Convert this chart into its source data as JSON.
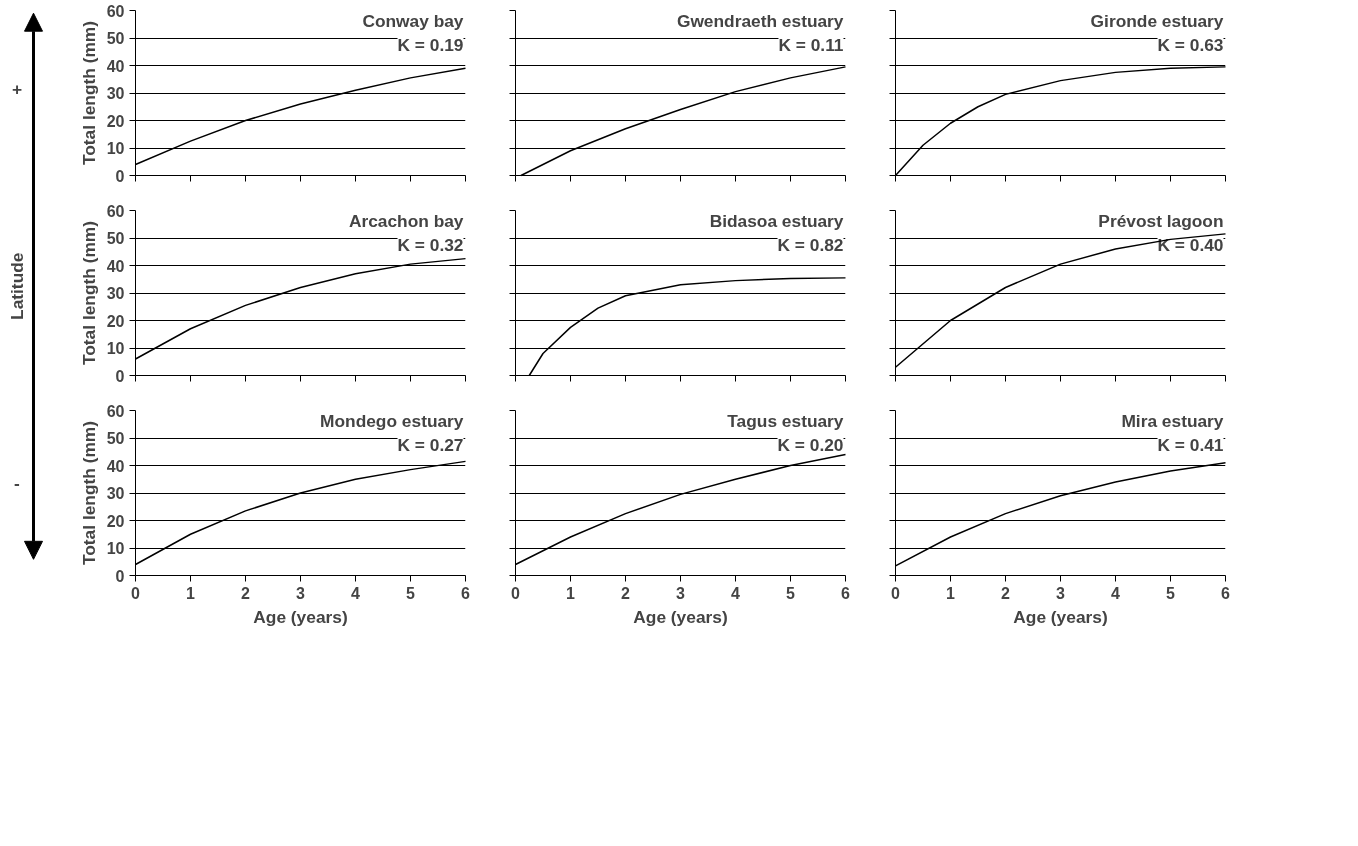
{
  "chart_data": [
    {
      "type": "line",
      "title": "Conway bay",
      "annotations": [
        "K = 0.19",
        "Latitude",
        "+",
        "-"
      ],
      "ylabel": "Total length (mm)",
      "x": [
        0,
        1,
        2,
        3,
        4,
        5,
        6
      ],
      "series": [
        {
          "color": "#000000",
          "values": [
            4,
            12.5,
            20,
            26,
            31,
            35.5,
            39
          ]
        }
      ],
      "xlim": [
        0,
        6
      ],
      "xticks": [
        0,
        1,
        2,
        3,
        4,
        5,
        6
      ],
      "ylim": [
        0,
        60
      ],
      "yticks": [
        0,
        10,
        20,
        30,
        40,
        50,
        60
      ],
      "grid": "y",
      "tick_labels": "y"
    },
    {
      "type": "line",
      "title": "Gwendraeth estuary",
      "annotations": [
        "K = 0.11"
      ],
      "x": [
        0.1,
        1,
        2,
        3,
        4,
        5,
        6
      ],
      "series": [
        {
          "color": "#000000",
          "values": [
            0,
            9,
            17,
            24,
            30.5,
            35.5,
            39.5
          ]
        }
      ],
      "xlim": [
        0,
        6
      ],
      "xticks": [
        0,
        1,
        2,
        3,
        4,
        5,
        6
      ],
      "ylim": [
        0,
        60
      ],
      "yticks": [
        0,
        10,
        20,
        30,
        40,
        50,
        60
      ],
      "grid": "y",
      "tick_labels": false
    },
    {
      "type": "line",
      "title": "Gironde estuary",
      "annotations": [
        "K = 0.63"
      ],
      "x": [
        0,
        0.5,
        1,
        1.5,
        2,
        3,
        4,
        5,
        6
      ],
      "series": [
        {
          "color": "#000000",
          "values": [
            0,
            11,
            19,
            25,
            29.5,
            34.5,
            37.5,
            39,
            39.5
          ]
        }
      ],
      "xlim": [
        0,
        6
      ],
      "xticks": [
        0,
        1,
        2,
        3,
        4,
        5,
        6
      ],
      "ylim": [
        0,
        60
      ],
      "yticks": [
        0,
        10,
        20,
        30,
        40,
        50,
        60
      ],
      "grid": "y",
      "tick_labels": false
    },
    {
      "type": "line",
      "title": "Arcachon bay",
      "annotations": [
        "K = 0.32"
      ],
      "ylabel": "Total length (mm)",
      "x": [
        0,
        1,
        2,
        3,
        4,
        5,
        6
      ],
      "series": [
        {
          "color": "#000000",
          "values": [
            6,
            17,
            25.5,
            32,
            37,
            40.5,
            42.5
          ]
        }
      ],
      "xlim": [
        0,
        6
      ],
      "xticks": [
        0,
        1,
        2,
        3,
        4,
        5,
        6
      ],
      "ylim": [
        0,
        60
      ],
      "yticks": [
        0,
        10,
        20,
        30,
        40,
        50,
        60
      ],
      "grid": "y",
      "tick_labels": "y"
    },
    {
      "type": "line",
      "title": "Bidasoa estuary",
      "annotations": [
        "K = 0.82"
      ],
      "x": [
        0.25,
        0.5,
        1,
        1.5,
        2,
        3,
        4,
        5,
        6
      ],
      "series": [
        {
          "color": "#000000",
          "values": [
            0,
            8,
            17.5,
            24.5,
            29,
            33,
            34.5,
            35.3,
            35.5
          ]
        }
      ],
      "xlim": [
        0,
        6
      ],
      "xticks": [
        0,
        1,
        2,
        3,
        4,
        5,
        6
      ],
      "ylim": [
        0,
        60
      ],
      "yticks": [
        0,
        10,
        20,
        30,
        40,
        50,
        60
      ],
      "grid": "y",
      "tick_labels": false
    },
    {
      "type": "line",
      "title": "Prévost lagoon",
      "annotations": [
        "K = 0.40"
      ],
      "x": [
        0,
        1,
        2,
        3,
        4,
        5,
        6
      ],
      "series": [
        {
          "color": "#000000",
          "values": [
            3,
            20,
            32,
            40.5,
            46,
            49.5,
            51.5
          ]
        }
      ],
      "xlim": [
        0,
        6
      ],
      "xticks": [
        0,
        1,
        2,
        3,
        4,
        5,
        6
      ],
      "ylim": [
        0,
        60
      ],
      "yticks": [
        0,
        10,
        20,
        30,
        40,
        50,
        60
      ],
      "grid": "y",
      "tick_labels": false
    },
    {
      "type": "line",
      "title": "Mondego estuary",
      "annotations": [
        "K = 0.27"
      ],
      "ylabel": "Total length (mm)",
      "xlabel": "Age (years)",
      "x": [
        0,
        1,
        2,
        3,
        4,
        5,
        6
      ],
      "series": [
        {
          "color": "#000000",
          "values": [
            4,
            15,
            23.5,
            30,
            35,
            38.5,
            41.5
          ]
        }
      ],
      "xlim": [
        0,
        6
      ],
      "xticks": [
        0,
        1,
        2,
        3,
        4,
        5,
        6
      ],
      "ylim": [
        0,
        60
      ],
      "yticks": [
        0,
        10,
        20,
        30,
        40,
        50,
        60
      ],
      "grid": "y"
    },
    {
      "type": "line",
      "title": "Tagus estuary",
      "annotations": [
        "K = 0.20"
      ],
      "xlabel": "Age (years)",
      "x": [
        0,
        1,
        2,
        3,
        4,
        5,
        6
      ],
      "series": [
        {
          "color": "#000000",
          "values": [
            4,
            14,
            22.5,
            29.5,
            35,
            40,
            44
          ]
        }
      ],
      "xlim": [
        0,
        6
      ],
      "xticks": [
        0,
        1,
        2,
        3,
        4,
        5,
        6
      ],
      "ylim": [
        0,
        60
      ],
      "yticks": [
        0,
        10,
        20,
        30,
        40,
        50,
        60
      ],
      "grid": "y",
      "tick_labels": "x"
    },
    {
      "type": "line",
      "title": "Mira estuary",
      "annotations": [
        "K = 0.41"
      ],
      "xlabel": "Age (years)",
      "x": [
        0,
        1,
        2,
        3,
        4,
        5,
        6
      ],
      "series": [
        {
          "color": "#000000",
          "values": [
            3.5,
            14,
            22.5,
            29,
            34,
            38,
            41
          ]
        }
      ],
      "xlim": [
        0,
        6
      ],
      "xticks": [
        0,
        1,
        2,
        3,
        4,
        5,
        6
      ],
      "ylim": [
        0,
        60
      ],
      "yticks": [
        0,
        10,
        20,
        30,
        40,
        50,
        60
      ],
      "grid": "y",
      "tick_labels": "x"
    }
  ]
}
